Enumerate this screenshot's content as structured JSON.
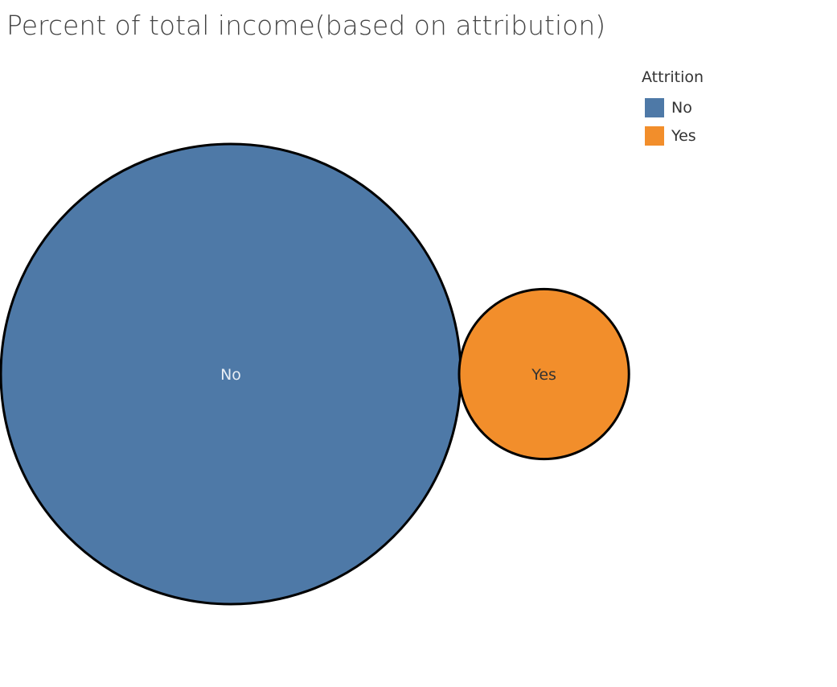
{
  "chart_data": {
    "type": "bubble",
    "title": "Percent of total income(based on attribution)",
    "legend": {
      "title": "Attrition",
      "placement": "top-right",
      "entries": [
        {
          "label": "No",
          "color": "#4e79a7"
        },
        {
          "label": "Yes",
          "color": "#f28e2b"
        }
      ]
    },
    "bubbles": [
      {
        "category": "No",
        "label": "No",
        "color": "#4e79a7",
        "label_color": "#e8eef5",
        "relative_size": 0.88
      },
      {
        "category": "Yes",
        "label": "Yes",
        "color": "#f28e2b",
        "label_color": "#333333",
        "relative_size": 0.12
      }
    ]
  }
}
